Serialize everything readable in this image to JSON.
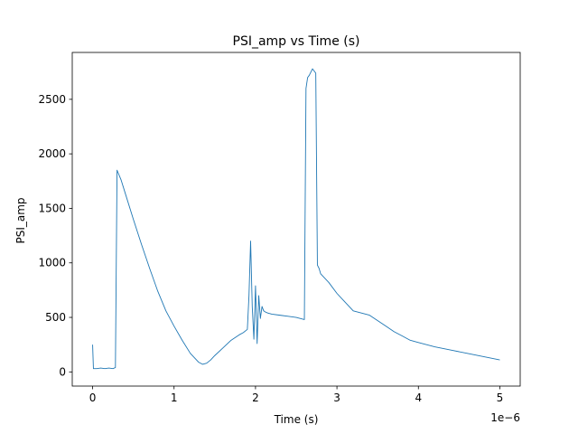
{
  "chart_data": {
    "type": "line",
    "title": "PSI_amp vs Time (s)",
    "xlabel": "Time (s)",
    "ylabel": "PSI_amp",
    "x_offset_label": "1e−6",
    "xlim": [
      -0.25,
      5.25
    ],
    "ylim": [
      -130,
      2930
    ],
    "x_ticks": [
      0,
      1,
      2,
      3,
      4,
      5
    ],
    "x_tick_labels": [
      "0",
      "1",
      "2",
      "3",
      "4",
      "5"
    ],
    "y_ticks": [
      0,
      500,
      1000,
      1500,
      2000,
      2500
    ],
    "y_tick_labels": [
      "0",
      "500",
      "1000",
      "1500",
      "2000",
      "2500"
    ],
    "grid": false,
    "series": [
      {
        "color": "#1f77b4",
        "x": [
          0.0,
          0.01,
          0.02,
          0.05,
          0.1,
          0.15,
          0.2,
          0.25,
          0.28,
          0.3,
          0.35,
          0.4,
          0.5,
          0.6,
          0.7,
          0.8,
          0.9,
          1.0,
          1.1,
          1.2,
          1.3,
          1.35,
          1.4,
          1.45,
          1.5,
          1.6,
          1.7,
          1.8,
          1.85,
          1.9,
          1.92,
          1.94,
          1.96,
          1.98,
          2.0,
          2.02,
          2.04,
          2.06,
          2.08,
          2.1,
          2.12,
          2.15,
          2.2,
          2.3,
          2.4,
          2.5,
          2.6,
          2.62,
          2.64,
          2.66,
          2.68,
          2.7,
          2.72,
          2.74,
          2.76,
          2.78,
          2.8,
          2.9,
          3.0,
          3.1,
          3.2,
          3.3,
          3.4,
          3.5,
          3.6,
          3.7,
          3.8,
          3.9,
          4.0,
          4.2,
          4.4,
          4.6,
          4.8,
          5.0
        ],
        "y": [
          250,
          30,
          30,
          30,
          35,
          30,
          35,
          30,
          40,
          1850,
          1760,
          1640,
          1400,
          1170,
          950,
          740,
          560,
          420,
          290,
          170,
          90,
          70,
          80,
          110,
          150,
          220,
          290,
          340,
          360,
          390,
          700,
          1200,
          600,
          300,
          790,
          260,
          700,
          490,
          600,
          560,
          550,
          540,
          530,
          520,
          510,
          500,
          480,
          2600,
          2700,
          2720,
          2750,
          2780,
          2760,
          2740,
          980,
          950,
          900,
          820,
          720,
          640,
          560,
          540,
          520,
          470,
          420,
          370,
          330,
          290,
          270,
          230,
          200,
          170,
          140,
          110
        ]
      }
    ]
  }
}
